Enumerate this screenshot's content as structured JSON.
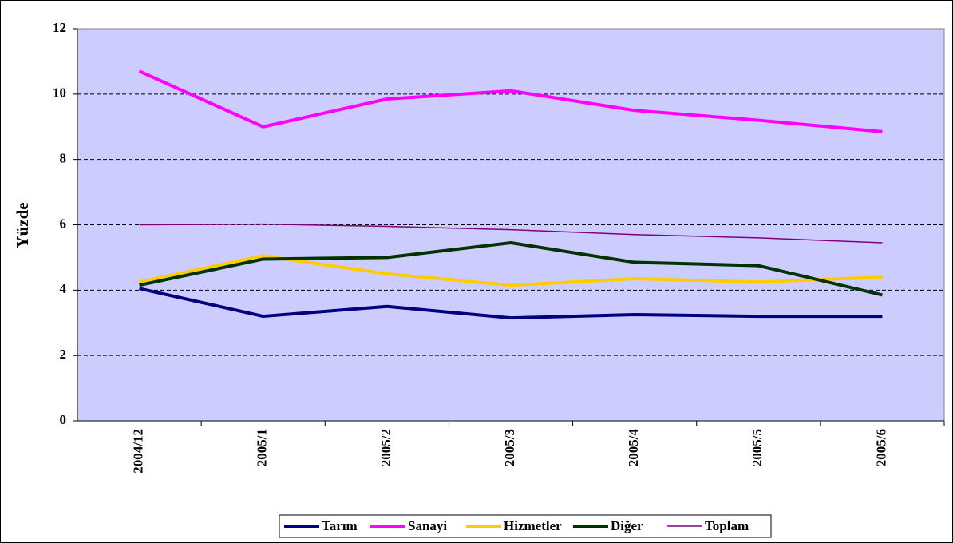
{
  "chart_data": {
    "type": "line",
    "y_label": "Yüzde",
    "categories": [
      "2004/12",
      "2005/1",
      "2005/2",
      "2005/3",
      "2005/4",
      "2005/5",
      "2005/6"
    ],
    "series": [
      {
        "name": "Tarım",
        "color": "#000080",
        "width": 4,
        "values": [
          4.05,
          3.2,
          3.5,
          3.15,
          3.25,
          3.2,
          3.2
        ]
      },
      {
        "name": "Sanayi",
        "color": "#ff00ff",
        "width": 4,
        "values": [
          10.7,
          9.0,
          9.85,
          10.1,
          9.5,
          9.2,
          8.85
        ]
      },
      {
        "name": "Hizmetler",
        "color": "#ffcc00",
        "width": 4,
        "values": [
          4.25,
          5.05,
          4.5,
          4.15,
          4.35,
          4.25,
          4.4
        ]
      },
      {
        "name": "Diğer",
        "color": "#003300",
        "width": 4,
        "values": [
          4.15,
          4.95,
          5.0,
          5.45,
          4.85,
          4.75,
          3.85
        ]
      },
      {
        "name": "Toplam",
        "color": "#800080",
        "width": 1.5,
        "values": [
          6.0,
          6.02,
          5.95,
          5.85,
          5.7,
          5.6,
          5.45
        ]
      }
    ],
    "ylim": [
      0,
      12
    ],
    "yticks": [
      0,
      2,
      4,
      6,
      8,
      10,
      12
    ],
    "grid": true,
    "plot_background": "#ccccff",
    "legend": "bottom"
  }
}
